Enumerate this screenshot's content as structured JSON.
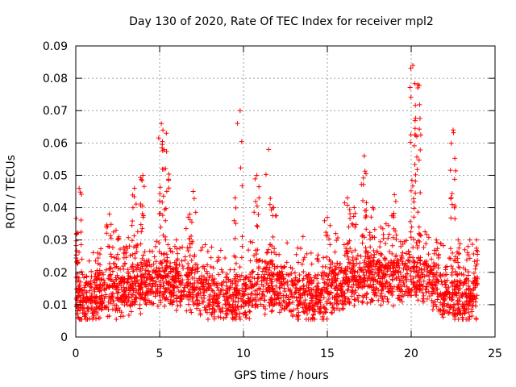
{
  "chart_data": {
    "type": "scatter",
    "title": "Day 130 of 2020, Rate Of TEC Index for receiver mpl2",
    "xlabel": "GPS time / hours",
    "ylabel": "ROTI / TECUs",
    "xlim": [
      0,
      25
    ],
    "ylim": [
      0,
      0.09
    ],
    "xticks": [
      "0",
      "5",
      "10",
      "15",
      "20",
      "25"
    ],
    "yticks": [
      "0",
      "0.01",
      "0.02",
      "0.03",
      "0.04",
      "0.05",
      "0.06",
      "0.07",
      "0.08",
      "0.09"
    ],
    "grid": true,
    "marker": "+",
    "color": "#ff0000",
    "series": [
      {
        "name": "ROTI",
        "baseline": [
          [
            0,
            0.011
          ],
          [
            1,
            0.012
          ],
          [
            2,
            0.013
          ],
          [
            3,
            0.014
          ],
          [
            4,
            0.016
          ],
          [
            5,
            0.017
          ],
          [
            6,
            0.016
          ],
          [
            7,
            0.015
          ],
          [
            8,
            0.013
          ],
          [
            9,
            0.012
          ],
          [
            10,
            0.012
          ],
          [
            11,
            0.016
          ],
          [
            12,
            0.015
          ],
          [
            13,
            0.013
          ],
          [
            14,
            0.012
          ],
          [
            15,
            0.013
          ],
          [
            16,
            0.016
          ],
          [
            17,
            0.018
          ],
          [
            18,
            0.018
          ],
          [
            19,
            0.018
          ],
          [
            20,
            0.019
          ],
          [
            21,
            0.018
          ],
          [
            22,
            0.013
          ],
          [
            23,
            0.011
          ],
          [
            24,
            0.011
          ]
        ],
        "spikes": [
          {
            "x": 0.05,
            "y": 0.032,
            "n": 14
          },
          {
            "x": 0.2,
            "y": 0.046,
            "n": 12
          },
          {
            "x": 1.3,
            "y": 0.026,
            "n": 10
          },
          {
            "x": 2.0,
            "y": 0.038,
            "n": 16
          },
          {
            "x": 2.4,
            "y": 0.033,
            "n": 12
          },
          {
            "x": 3.0,
            "y": 0.028,
            "n": 10
          },
          {
            "x": 3.5,
            "y": 0.046,
            "n": 16
          },
          {
            "x": 4.0,
            "y": 0.05,
            "n": 16
          },
          {
            "x": 5.1,
            "y": 0.066,
            "n": 20
          },
          {
            "x": 5.4,
            "y": 0.063,
            "n": 18
          },
          {
            "x": 6.0,
            "y": 0.03,
            "n": 10
          },
          {
            "x": 6.8,
            "y": 0.038,
            "n": 10
          },
          {
            "x": 7.0,
            "y": 0.045,
            "n": 4
          },
          {
            "x": 9.5,
            "y": 0.043,
            "n": 10
          },
          {
            "x": 9.8,
            "y": 0.07,
            "n": 6
          },
          {
            "x": 10.8,
            "y": 0.05,
            "n": 14
          },
          {
            "x": 11.5,
            "y": 0.058,
            "n": 8
          },
          {
            "x": 11.8,
            "y": 0.04,
            "n": 12
          },
          {
            "x": 15.0,
            "y": 0.037,
            "n": 12
          },
          {
            "x": 15.5,
            "y": 0.032,
            "n": 10
          },
          {
            "x": 16.2,
            "y": 0.043,
            "n": 14
          },
          {
            "x": 16.6,
            "y": 0.04,
            "n": 12
          },
          {
            "x": 17.2,
            "y": 0.056,
            "n": 18
          },
          {
            "x": 17.7,
            "y": 0.04,
            "n": 12
          },
          {
            "x": 18.5,
            "y": 0.035,
            "n": 10
          },
          {
            "x": 19.0,
            "y": 0.044,
            "n": 10
          },
          {
            "x": 20.1,
            "y": 0.084,
            "n": 24
          },
          {
            "x": 20.4,
            "y": 0.078,
            "n": 22
          },
          {
            "x": 21.5,
            "y": 0.03,
            "n": 10
          },
          {
            "x": 22.5,
            "y": 0.064,
            "n": 18
          },
          {
            "x": 22.8,
            "y": 0.03,
            "n": 12
          },
          {
            "x": 23.5,
            "y": 0.03,
            "n": 10
          },
          {
            "x": 23.9,
            "y": 0.03,
            "n": 12
          }
        ]
      }
    ]
  }
}
